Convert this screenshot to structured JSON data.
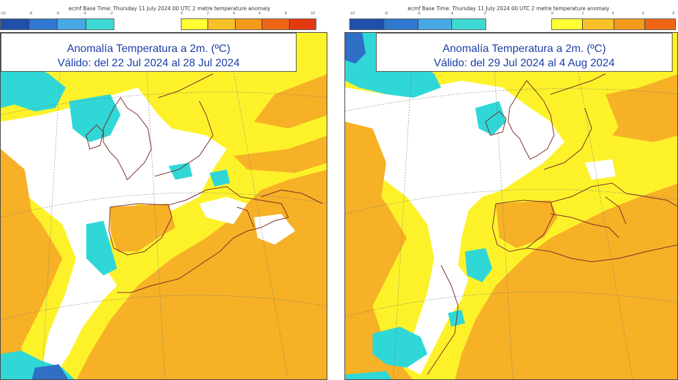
{
  "panels": [
    {
      "header": "ecmf  Base Time: Thursday 11 July 2024 00 UTC 2 metre temperature anomaly",
      "title_line1": "Anomalía Temperatura a 2m. (ºC)",
      "title_line2": "Válido: del 22 Jul 2024 al 28 Jul 2024"
    },
    {
      "header": "ecmf  Base Time: Thursday 11 July 2024 00 UTC 2 metre temperature anomaly",
      "title_line1": "Anomalía Temperatura a 2m. (ºC)",
      "title_line2": "Válido: del 29 Jul 2024 al 4 Aug 2024"
    }
  ],
  "colorbar": {
    "cold_ticks": [
      "-10",
      "-8",
      "-6",
      "-4",
      "-2",
      "0"
    ],
    "warm_ticks": [
      "0",
      "2",
      "4",
      "6",
      "8",
      "10"
    ],
    "cold_colors": [
      "#1f4fa8",
      "#2f78d0",
      "#47a8e6",
      "#3fd9d3"
    ],
    "warm_colors": [
      "#ffff33",
      "#f9c027",
      "#f39a1a",
      "#ee6518",
      "#e33a12"
    ]
  },
  "palette": {
    "ocean_warm": "#f6b126",
    "slight_warm": "#fdf22a",
    "neutral": "#ffffff",
    "slight_cold": "#2fd8d6",
    "cold": "#2f6fc6",
    "coastline": "#7a2a2a"
  }
}
